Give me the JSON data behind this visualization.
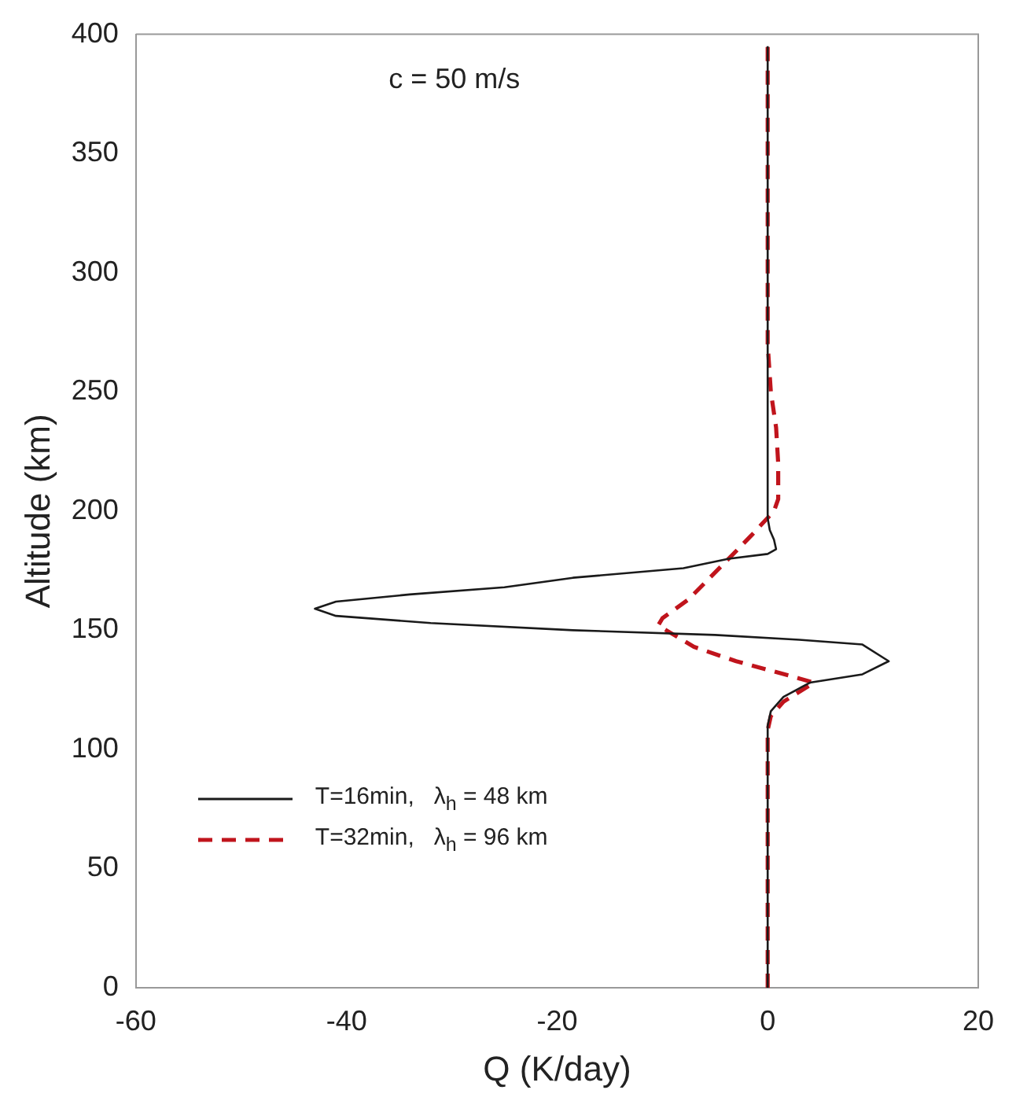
{
  "chart_data": {
    "type": "line",
    "xlabel": "Q (K/day)",
    "ylabel": "Altitude (km)",
    "xlim": [
      -60,
      20
    ],
    "xticks": [
      -60,
      -40,
      -20,
      0,
      20
    ],
    "ylim": [
      0,
      400
    ],
    "yticks": [
      0,
      50,
      100,
      150,
      200,
      250,
      300,
      350,
      400
    ],
    "grid": false,
    "legend": "bottom left",
    "annotations": [
      "c = 50 m/s"
    ],
    "series": [
      {
        "name": "T=16min,   λ$_{h}$ = 48 km",
        "color": "#1a1a1a",
        "line_style": "solid",
        "x": [
          0,
          0,
          0.3,
          1.5,
          4,
          9,
          11.5,
          9,
          3,
          -5,
          -18.5,
          -32,
          -41,
          -43,
          -41,
          -34,
          -25,
          -18.5,
          -8,
          -3.7,
          0,
          0.8,
          0.6,
          0.2,
          0,
          0
        ],
        "values": [
          0,
          110,
          116,
          122,
          128,
          131.5,
          137,
          144,
          146,
          148,
          150,
          153,
          156,
          159,
          162,
          165,
          168,
          172,
          176,
          180,
          182,
          184,
          188,
          192,
          197,
          395
        ]
      },
      {
        "name": "T=32min,   λ$_{h}$ = 96 km",
        "color": "#c0141c",
        "line_style": "dashed",
        "x": [
          0,
          0,
          0.3,
          1.5,
          4.4,
          2,
          -3,
          -7,
          -10.4,
          -10,
          -7.5,
          -3.7,
          -1.5,
          0.6,
          1,
          1,
          0.8,
          0.3,
          0,
          0
        ],
        "values": [
          0,
          108,
          114,
          120,
          128,
          131,
          137,
          143,
          152,
          155,
          163,
          180,
          190,
          200,
          205,
          220,
          235,
          250,
          270,
          395
        ]
      }
    ]
  }
}
